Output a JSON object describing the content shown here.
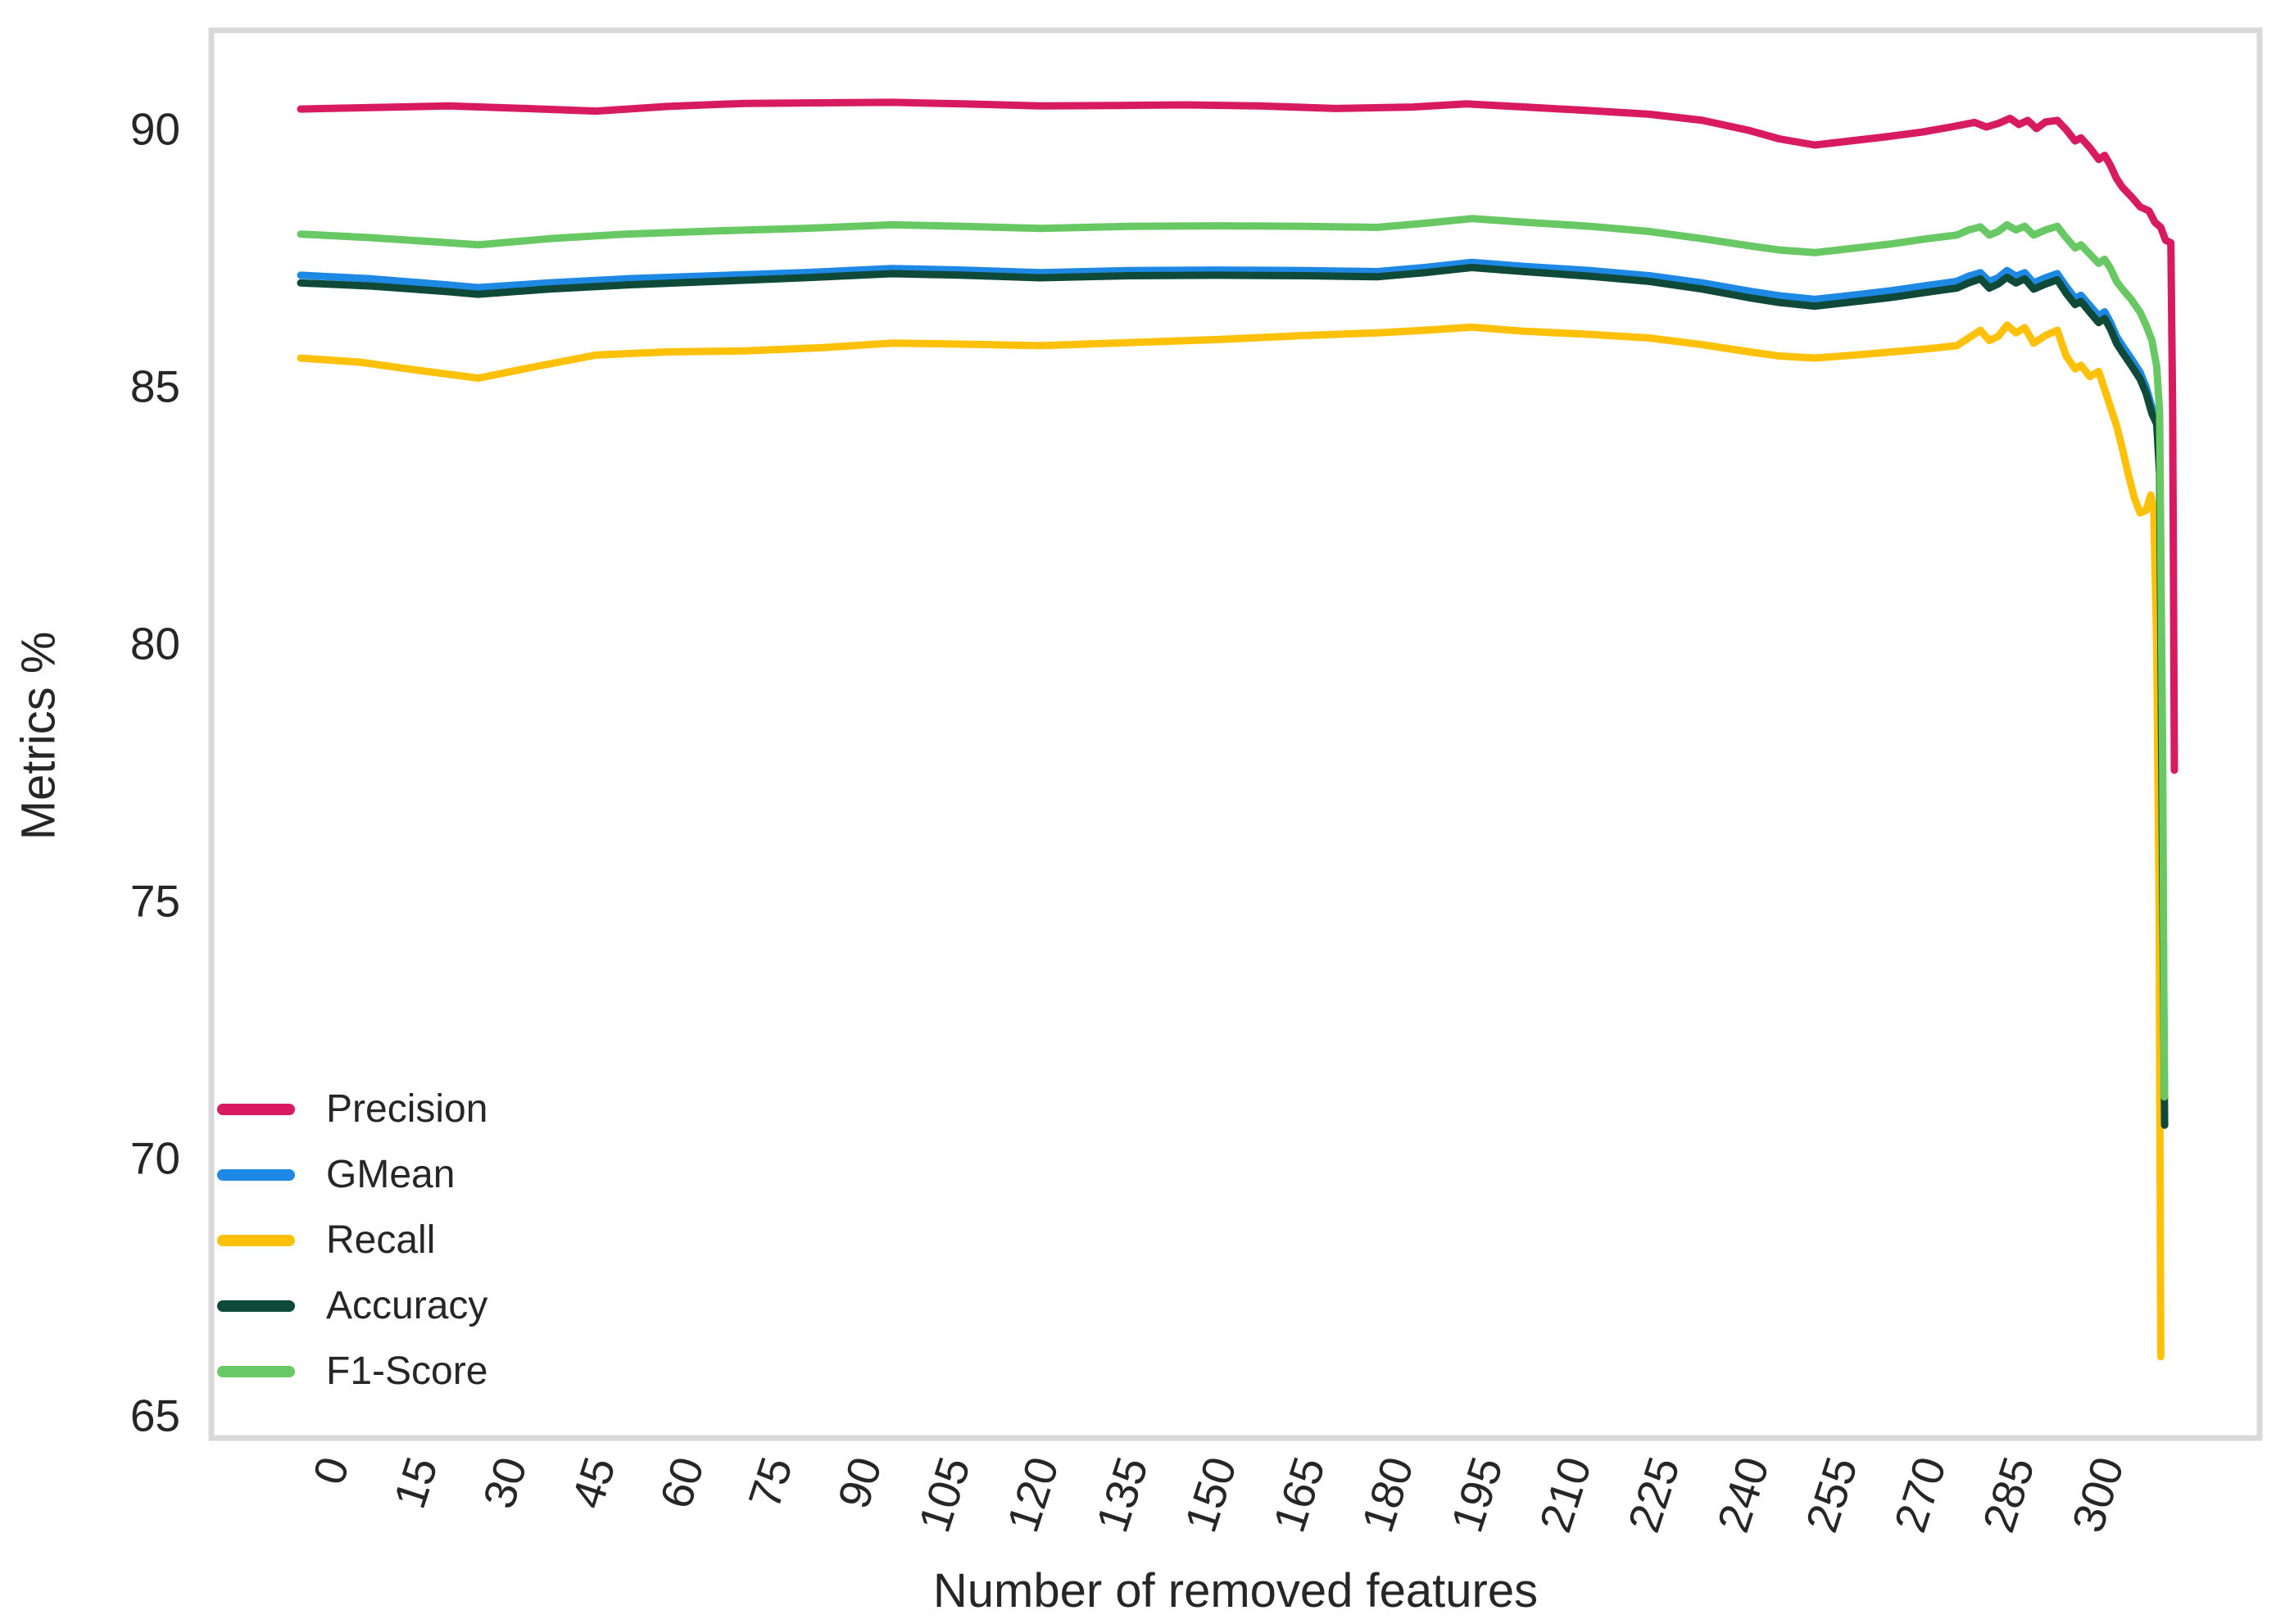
{
  "figure": {
    "background": "#ffffff",
    "text_color": "#262626",
    "spine_color": "#d9d9d9"
  },
  "chart_data": {
    "type": "line",
    "title": "",
    "xlabel": "Number of removed features",
    "ylabel": "Metrics %",
    "xticks": [
      0,
      15,
      30,
      45,
      60,
      75,
      90,
      105,
      120,
      135,
      150,
      165,
      180,
      195,
      210,
      225,
      240,
      255,
      270,
      285,
      300
    ],
    "yticks": [
      65,
      70,
      75,
      80,
      85,
      90
    ],
    "xlim": [
      -15.1,
      331.2
    ],
    "ylim": [
      64.57,
      91.93
    ],
    "grid": false,
    "legend_position": "lower left",
    "xtick_rotation_deg": 72,
    "series": [
      {
        "name": "Precision",
        "color": "#D81B60",
        "points": [
          [
            0,
            90.4
          ],
          [
            12,
            90.43
          ],
          [
            25,
            90.46
          ],
          [
            38,
            90.41
          ],
          [
            50,
            90.36
          ],
          [
            62,
            90.45
          ],
          [
            75,
            90.51
          ],
          [
            88,
            90.52
          ],
          [
            100,
            90.53
          ],
          [
            112,
            90.5
          ],
          [
            125,
            90.46
          ],
          [
            138,
            90.47
          ],
          [
            150,
            90.48
          ],
          [
            162,
            90.46
          ],
          [
            175,
            90.41
          ],
          [
            188,
            90.44
          ],
          [
            197,
            90.5
          ],
          [
            207,
            90.44
          ],
          [
            218,
            90.37
          ],
          [
            228,
            90.3
          ],
          [
            237,
            90.18
          ],
          [
            245,
            89.98
          ],
          [
            250,
            89.82
          ],
          [
            256,
            89.7
          ],
          [
            262,
            89.78
          ],
          [
            268,
            89.86
          ],
          [
            274,
            89.95
          ],
          [
            279,
            90.05
          ],
          [
            283,
            90.14
          ],
          [
            285,
            90.05
          ],
          [
            287,
            90.12
          ],
          [
            289,
            90.22
          ],
          [
            290.5,
            90.1
          ],
          [
            292,
            90.18
          ],
          [
            293.5,
            90.02
          ],
          [
            295,
            90.15
          ],
          [
            297,
            90.18
          ],
          [
            298.5,
            90.0
          ],
          [
            300,
            89.78
          ],
          [
            301,
            89.84
          ],
          [
            302.5,
            89.65
          ],
          [
            304,
            89.42
          ],
          [
            305,
            89.5
          ],
          [
            306,
            89.3
          ],
          [
            307,
            89.05
          ],
          [
            308,
            88.88
          ],
          [
            309.5,
            88.7
          ],
          [
            311,
            88.5
          ],
          [
            312.5,
            88.42
          ],
          [
            313.5,
            88.2
          ],
          [
            314.5,
            88.1
          ],
          [
            315.3,
            87.85
          ],
          [
            316.2,
            87.8
          ],
          [
            316.5,
            84.5
          ],
          [
            316.8,
            77.55
          ]
        ]
      },
      {
        "name": "GMean",
        "color": "#1E88E5",
        "points": [
          [
            0,
            87.17
          ],
          [
            12,
            87.1
          ],
          [
            25,
            86.98
          ],
          [
            30,
            86.93
          ],
          [
            42,
            87.02
          ],
          [
            55,
            87.1
          ],
          [
            70,
            87.16
          ],
          [
            85,
            87.22
          ],
          [
            100,
            87.3
          ],
          [
            112,
            87.27
          ],
          [
            125,
            87.22
          ],
          [
            140,
            87.26
          ],
          [
            155,
            87.27
          ],
          [
            170,
            87.26
          ],
          [
            182,
            87.24
          ],
          [
            190,
            87.32
          ],
          [
            198,
            87.42
          ],
          [
            207,
            87.34
          ],
          [
            218,
            87.26
          ],
          [
            228,
            87.16
          ],
          [
            237,
            87.02
          ],
          [
            245,
            86.86
          ],
          [
            250,
            86.77
          ],
          [
            256,
            86.7
          ],
          [
            263,
            86.79
          ],
          [
            269,
            86.87
          ],
          [
            275,
            86.97
          ],
          [
            280,
            87.05
          ],
          [
            282,
            87.15
          ],
          [
            284,
            87.22
          ],
          [
            285.5,
            87.05
          ],
          [
            287,
            87.12
          ],
          [
            288.5,
            87.26
          ],
          [
            290,
            87.15
          ],
          [
            291.5,
            87.22
          ],
          [
            293,
            87.02
          ],
          [
            295,
            87.12
          ],
          [
            297,
            87.2
          ],
          [
            298.5,
            86.95
          ],
          [
            300,
            86.72
          ],
          [
            301,
            86.78
          ],
          [
            302.5,
            86.58
          ],
          [
            304,
            86.38
          ],
          [
            305,
            86.46
          ],
          [
            306,
            86.25
          ],
          [
            307,
            85.98
          ],
          [
            308,
            85.8
          ],
          [
            309.5,
            85.55
          ],
          [
            311,
            85.28
          ],
          [
            312,
            85.0
          ],
          [
            313,
            84.6
          ],
          [
            313.8,
            84.4
          ],
          [
            314.3,
            83.5
          ],
          [
            314.8,
            76.0
          ],
          [
            315.1,
            71.4
          ]
        ]
      },
      {
        "name": "Recall",
        "color": "#FFC107",
        "points": [
          [
            0,
            85.56
          ],
          [
            10,
            85.48
          ],
          [
            20,
            85.32
          ],
          [
            30,
            85.17
          ],
          [
            40,
            85.4
          ],
          [
            50,
            85.62
          ],
          [
            62,
            85.68
          ],
          [
            75,
            85.7
          ],
          [
            88,
            85.76
          ],
          [
            100,
            85.85
          ],
          [
            112,
            85.83
          ],
          [
            125,
            85.8
          ],
          [
            140,
            85.86
          ],
          [
            155,
            85.92
          ],
          [
            170,
            86.0
          ],
          [
            182,
            86.05
          ],
          [
            190,
            86.1
          ],
          [
            198,
            86.16
          ],
          [
            207,
            86.08
          ],
          [
            218,
            86.02
          ],
          [
            228,
            85.95
          ],
          [
            237,
            85.82
          ],
          [
            245,
            85.68
          ],
          [
            250,
            85.6
          ],
          [
            256,
            85.56
          ],
          [
            263,
            85.62
          ],
          [
            269,
            85.68
          ],
          [
            275,
            85.74
          ],
          [
            280,
            85.8
          ],
          [
            282,
            85.95
          ],
          [
            284,
            86.1
          ],
          [
            285.5,
            85.9
          ],
          [
            287,
            85.98
          ],
          [
            288.5,
            86.2
          ],
          [
            290,
            86.05
          ],
          [
            291.5,
            86.15
          ],
          [
            293,
            85.85
          ],
          [
            295,
            86.0
          ],
          [
            297,
            86.1
          ],
          [
            298.5,
            85.6
          ],
          [
            300,
            85.35
          ],
          [
            301,
            85.42
          ],
          [
            302.5,
            85.2
          ],
          [
            304,
            85.3
          ],
          [
            305,
            84.95
          ],
          [
            306,
            84.6
          ],
          [
            307,
            84.25
          ],
          [
            308,
            83.8
          ],
          [
            309,
            83.3
          ],
          [
            310,
            82.85
          ],
          [
            311,
            82.55
          ],
          [
            312,
            82.6
          ],
          [
            312.8,
            82.9
          ],
          [
            313.3,
            82.6
          ],
          [
            313.8,
            80.0
          ],
          [
            314.2,
            75.0
          ],
          [
            314.5,
            66.15
          ]
        ]
      },
      {
        "name": "Accuracy",
        "color": "#0F4A38",
        "points": [
          [
            0,
            87.02
          ],
          [
            12,
            86.96
          ],
          [
            25,
            86.85
          ],
          [
            30,
            86.8
          ],
          [
            42,
            86.9
          ],
          [
            55,
            86.98
          ],
          [
            70,
            87.05
          ],
          [
            85,
            87.12
          ],
          [
            100,
            87.2
          ],
          [
            112,
            87.17
          ],
          [
            125,
            87.12
          ],
          [
            140,
            87.16
          ],
          [
            155,
            87.17
          ],
          [
            170,
            87.16
          ],
          [
            182,
            87.14
          ],
          [
            190,
            87.22
          ],
          [
            198,
            87.32
          ],
          [
            207,
            87.24
          ],
          [
            218,
            87.15
          ],
          [
            228,
            87.05
          ],
          [
            237,
            86.9
          ],
          [
            245,
            86.73
          ],
          [
            250,
            86.64
          ],
          [
            256,
            86.57
          ],
          [
            263,
            86.66
          ],
          [
            269,
            86.74
          ],
          [
            275,
            86.84
          ],
          [
            280,
            86.92
          ],
          [
            282,
            87.02
          ],
          [
            284,
            87.1
          ],
          [
            285.5,
            86.92
          ],
          [
            287,
            87.0
          ],
          [
            288.5,
            87.13
          ],
          [
            290,
            87.02
          ],
          [
            291.5,
            87.1
          ],
          [
            293,
            86.9
          ],
          [
            295,
            87.0
          ],
          [
            297,
            87.08
          ],
          [
            298.5,
            86.82
          ],
          [
            300,
            86.6
          ],
          [
            301,
            86.66
          ],
          [
            302.5,
            86.45
          ],
          [
            304,
            86.25
          ],
          [
            305,
            86.33
          ],
          [
            306,
            86.12
          ],
          [
            307,
            85.85
          ],
          [
            308,
            85.67
          ],
          [
            309.5,
            85.42
          ],
          [
            311,
            85.15
          ],
          [
            312,
            84.88
          ],
          [
            313,
            84.48
          ],
          [
            313.8,
            84.28
          ],
          [
            314.3,
            83.3
          ],
          [
            314.8,
            75.5
          ],
          [
            315.15,
            70.65
          ]
        ]
      },
      {
        "name": "F1-Score",
        "color": "#68C964",
        "points": [
          [
            0,
            87.97
          ],
          [
            12,
            87.9
          ],
          [
            25,
            87.8
          ],
          [
            30,
            87.76
          ],
          [
            42,
            87.88
          ],
          [
            55,
            87.97
          ],
          [
            70,
            88.03
          ],
          [
            85,
            88.08
          ],
          [
            100,
            88.15
          ],
          [
            112,
            88.12
          ],
          [
            125,
            88.08
          ],
          [
            140,
            88.12
          ],
          [
            155,
            88.13
          ],
          [
            170,
            88.12
          ],
          [
            182,
            88.1
          ],
          [
            190,
            88.18
          ],
          [
            198,
            88.27
          ],
          [
            207,
            88.2
          ],
          [
            218,
            88.12
          ],
          [
            228,
            88.02
          ],
          [
            237,
            87.88
          ],
          [
            245,
            87.74
          ],
          [
            250,
            87.66
          ],
          [
            256,
            87.61
          ],
          [
            263,
            87.7
          ],
          [
            269,
            87.78
          ],
          [
            275,
            87.88
          ],
          [
            280,
            87.95
          ],
          [
            282,
            88.05
          ],
          [
            284,
            88.11
          ],
          [
            285.5,
            87.95
          ],
          [
            287,
            88.02
          ],
          [
            288.5,
            88.15
          ],
          [
            290,
            88.05
          ],
          [
            291.5,
            88.12
          ],
          [
            293,
            87.95
          ],
          [
            295,
            88.05
          ],
          [
            297,
            88.12
          ],
          [
            298.5,
            87.9
          ],
          [
            300,
            87.7
          ],
          [
            301,
            87.76
          ],
          [
            302.5,
            87.58
          ],
          [
            304,
            87.4
          ],
          [
            305,
            87.48
          ],
          [
            306,
            87.3
          ],
          [
            307,
            87.05
          ],
          [
            308,
            86.9
          ],
          [
            309.5,
            86.7
          ],
          [
            311,
            86.45
          ],
          [
            312,
            86.2
          ],
          [
            313,
            85.9
          ],
          [
            313.8,
            85.4
          ],
          [
            314.3,
            84.5
          ],
          [
            314.8,
            78.0
          ],
          [
            315.1,
            71.2
          ]
        ]
      }
    ]
  },
  "legend": {
    "labels": [
      "Precision",
      "GMean",
      "Recall",
      "Accuracy",
      "F1-Score"
    ]
  }
}
